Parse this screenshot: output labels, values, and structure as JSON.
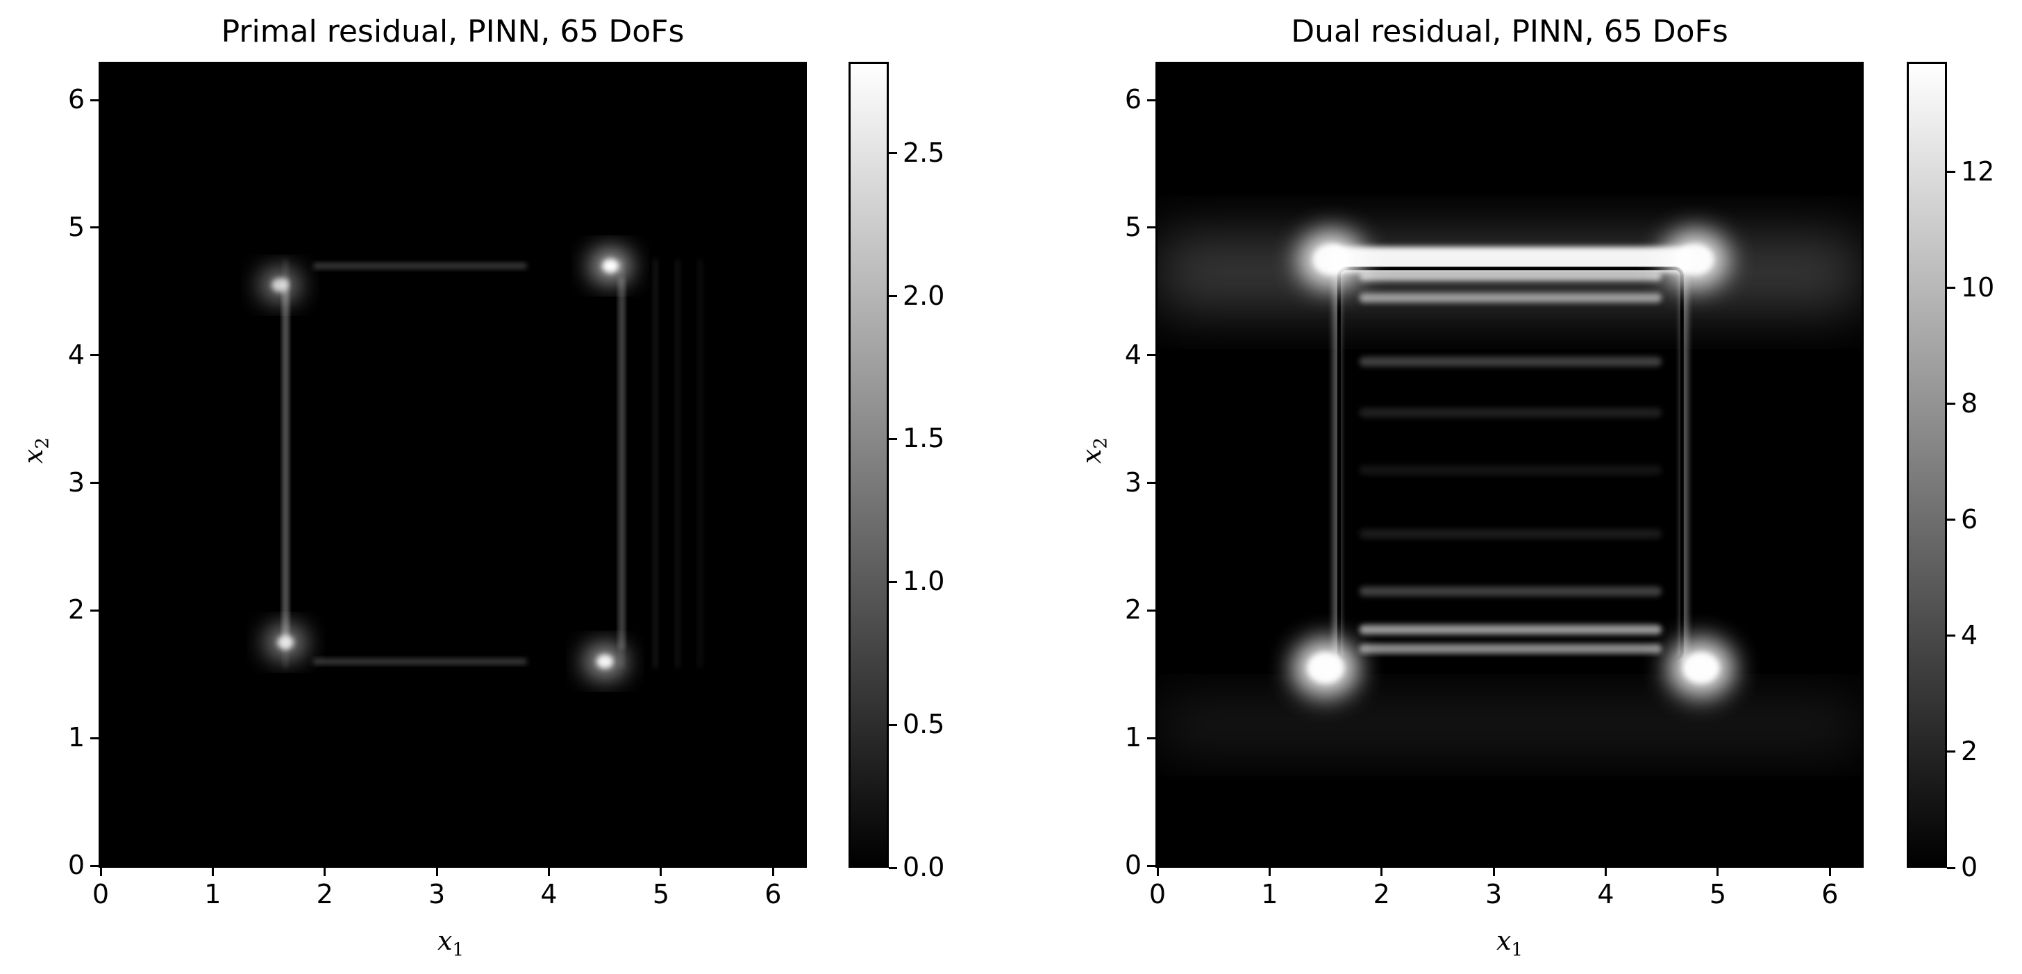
{
  "chart_data": [
    {
      "type": "heatmap",
      "title": "Primal residual, PINN, 65 DoFs",
      "xlabel": "x",
      "xlabel_sub": "1",
      "ylabel": "x",
      "ylabel_sub": "2",
      "xlim": [
        0,
        6.2832
      ],
      "ylim": [
        0,
        6.2832
      ],
      "xticks": [
        0,
        1,
        2,
        3,
        4,
        5,
        6
      ],
      "yticks": [
        0,
        1,
        2,
        3,
        4,
        5,
        6
      ],
      "colormap": "gray",
      "colorbar": {
        "range": [
          0,
          2.82
        ],
        "ticks": [
          "0.0",
          "0.5",
          "1.0",
          "1.5",
          "2.0",
          "2.5"
        ],
        "tick_values": [
          0,
          0.5,
          1.0,
          1.5,
          2.0,
          2.5
        ]
      },
      "features": {
        "square_edges": {
          "x": [
            1.6,
            4.7
          ],
          "y": [
            1.6,
            4.7
          ]
        },
        "hotspots": [
          {
            "x": 4.55,
            "y": 4.7,
            "value": 2.8
          },
          {
            "x": 4.5,
            "y": 1.6,
            "value": 2.6
          },
          {
            "x": 1.65,
            "y": 1.75,
            "value": 2.2
          },
          {
            "x": 1.6,
            "y": 4.55,
            "value": 2.0
          }
        ]
      }
    },
    {
      "type": "heatmap",
      "title": "Dual residual, PINN, 65 DoFs",
      "xlabel": "x",
      "xlabel_sub": "1",
      "ylabel": "x",
      "ylabel_sub": "2",
      "xlim": [
        0,
        6.2832
      ],
      "ylim": [
        0,
        6.2832
      ],
      "xticks": [
        0,
        1,
        2,
        3,
        4,
        5,
        6
      ],
      "yticks": [
        0,
        1,
        2,
        3,
        4,
        5,
        6
      ],
      "colormap": "gray",
      "colorbar": {
        "range": [
          0,
          13.9
        ],
        "ticks": [
          "0",
          "2",
          "4",
          "6",
          "8",
          "10",
          "12"
        ],
        "tick_values": [
          0,
          2,
          4,
          6,
          8,
          10,
          12
        ]
      },
      "features": {
        "square_edges": {
          "x": [
            1.6,
            4.7
          ],
          "y": [
            1.6,
            4.7
          ]
        },
        "hotspots": [
          {
            "x": 1.5,
            "y": 1.55,
            "value": 13.5
          },
          {
            "x": 4.85,
            "y": 1.55,
            "value": 13.5
          },
          {
            "x": 1.55,
            "y": 4.75,
            "value": 13.0
          },
          {
            "x": 4.8,
            "y": 4.75,
            "value": 13.0
          }
        ]
      }
    }
  ]
}
